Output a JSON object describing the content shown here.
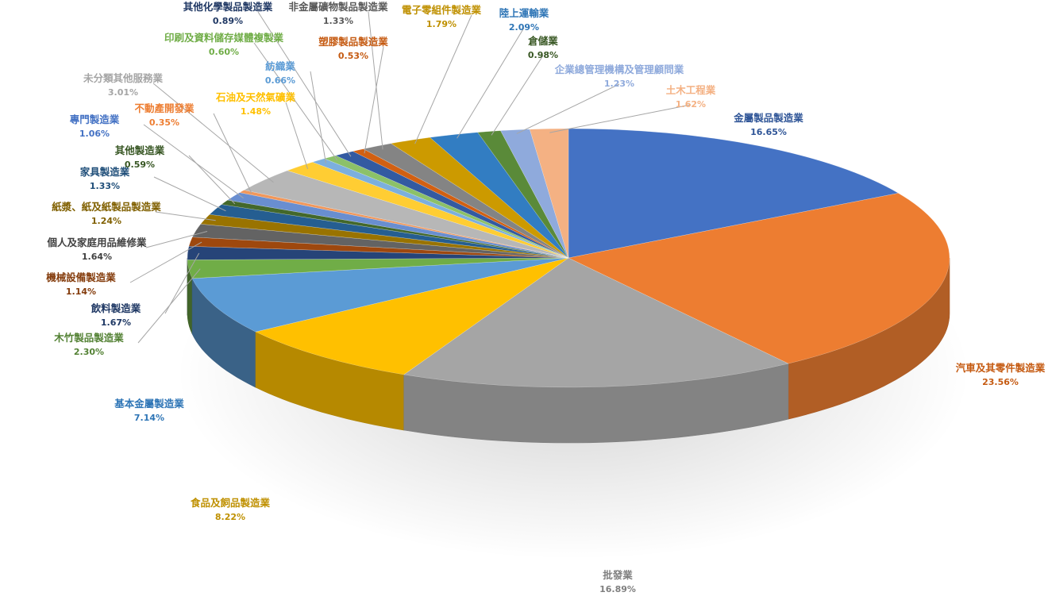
{
  "chart_data": {
    "type": "pie",
    "style": "3d-exploded",
    "slices": [
      {
        "name": "金屬製品製造業",
        "value": 16.65,
        "label": "16.65%",
        "color": "#4472C4",
        "label_color": "#2F5597"
      },
      {
        "name": "汽車及其零件製造業",
        "value": 23.56,
        "label": "23.56%",
        "color": "#ED7D31",
        "label_color": "#C55A11"
      },
      {
        "name": "批發業",
        "value": 16.89,
        "label": "16.89%",
        "color": "#A5A5A5",
        "label_color": "#7F7F7F"
      },
      {
        "name": "食品及飼品製造業",
        "value": 8.22,
        "label": "8.22%",
        "color": "#FFC000",
        "label_color": "#BF9000"
      },
      {
        "name": "基本金屬製造業",
        "value": 7.14,
        "label": "7.14%",
        "color": "#5B9BD5",
        "label_color": "#2E75B6"
      },
      {
        "name": "木竹製品製造業",
        "value": 2.3,
        "label": "2.30%",
        "color": "#70AD47",
        "label_color": "#548235"
      },
      {
        "name": "飲料製造業",
        "value": 1.67,
        "label": "1.67%",
        "color": "#264478",
        "label_color": "#1F3864"
      },
      {
        "name": "機械設備製造業",
        "value": 1.14,
        "label": "1.14%",
        "color": "#9E480E",
        "label_color": "#843C0C"
      },
      {
        "name": "個人及家庭用品維修業",
        "value": 1.64,
        "label": "1.64%",
        "color": "#636363",
        "label_color": "#404040"
      },
      {
        "name": "紙漿、紙及紙製品製造業",
        "value": 1.24,
        "label": "1.24%",
        "color": "#997300",
        "label_color": "#806000"
      },
      {
        "name": "家具製造業",
        "value": 1.33,
        "label": "1.33%",
        "color": "#255E91",
        "label_color": "#1F4E79"
      },
      {
        "name": "其他製造業",
        "value": 0.59,
        "label": "0.59%",
        "color": "#43682B",
        "label_color": "#375623"
      },
      {
        "name": "專門製造業",
        "value": 1.06,
        "label": "1.06%",
        "color": "#698ED0",
        "label_color": "#4472C4"
      },
      {
        "name": "不動產開發業",
        "value": 0.35,
        "label": "0.35%",
        "color": "#F1975A",
        "label_color": "#ED7D31"
      },
      {
        "name": "未分類其他服務業",
        "value": 3.01,
        "label": "3.01%",
        "color": "#B7B7B7",
        "label_color": "#A5A5A5"
      },
      {
        "name": "石油及天然氣礦業",
        "value": 1.48,
        "label": "1.48%",
        "color": "#FFCD33",
        "label_color": "#FFC000"
      },
      {
        "name": "紡織業",
        "value": 0.66,
        "label": "0.66%",
        "color": "#7CAFDD",
        "label_color": "#5B9BD5"
      },
      {
        "name": "印刷及資料儲存媒體複製業",
        "value": 0.6,
        "label": "0.60%",
        "color": "#8CC168",
        "label_color": "#70AD47"
      },
      {
        "name": "其他化學製品製造業",
        "value": 0.89,
        "label": "0.89%",
        "color": "#335AA1",
        "label_color": "#203864"
      },
      {
        "name": "塑膠製品製造業",
        "value": 0.53,
        "label": "0.53%",
        "color": "#D26012",
        "label_color": "#C55A11"
      },
      {
        "name": "非金屬礦物製品製造業",
        "value": 1.33,
        "label": "1.33%",
        "color": "#848484",
        "label_color": "#595959"
      },
      {
        "name": "電子零組件製造業",
        "value": 1.79,
        "label": "1.79%",
        "color": "#CC9A00",
        "label_color": "#BF9000"
      },
      {
        "name": "陸上運輸業",
        "value": 2.09,
        "label": "2.09%",
        "color": "#327DC2",
        "label_color": "#2E75B6"
      },
      {
        "name": "倉儲業",
        "value": 0.98,
        "label": "0.98%",
        "color": "#5A8A39",
        "label_color": "#385723"
      },
      {
        "name": "企業總管理機構及管理顧問業",
        "value": 1.23,
        "label": "1.23%",
        "color": "#8FAADC",
        "label_color": "#8FAADC"
      },
      {
        "name": "土木工程業",
        "value": 1.62,
        "label": "1.62%",
        "color": "#F4B183",
        "label_color": "#F4B183"
      }
    ]
  }
}
